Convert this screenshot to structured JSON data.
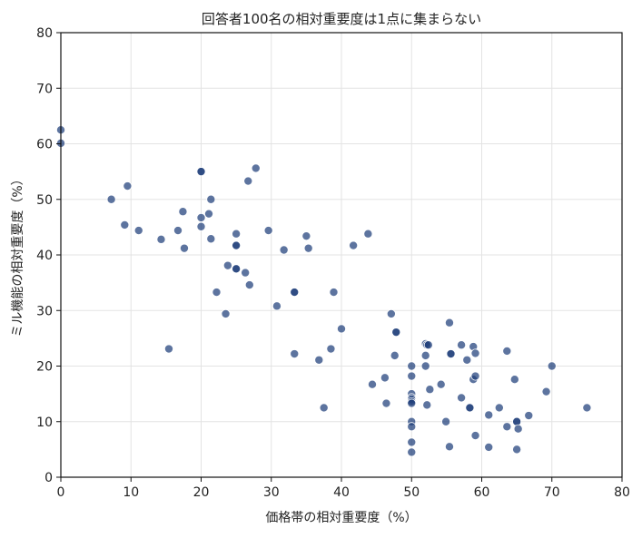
{
  "chart_data": {
    "type": "scatter",
    "title": "回答者100名の相対重要度は1点に集まらない",
    "xlabel": "価格帯の相対重要度（%）",
    "ylabel": "ミル機能の相対重要度（%）",
    "xlim": [
      0,
      80
    ],
    "ylim": [
      0,
      80
    ],
    "xticks": [
      0,
      10,
      20,
      30,
      40,
      50,
      60,
      70,
      80
    ],
    "yticks": [
      0,
      10,
      20,
      30,
      40,
      50,
      60,
      70,
      80
    ],
    "grid": true,
    "point_color": "#1f3f7a",
    "points": [
      [
        0,
        62.5
      ],
      [
        0,
        60.1
      ],
      [
        7.2,
        50.0
      ],
      [
        9.5,
        52.4
      ],
      [
        9.1,
        45.4
      ],
      [
        11.1,
        44.4
      ],
      [
        14.3,
        42.8
      ],
      [
        16.7,
        44.4
      ],
      [
        17.4,
        47.8
      ],
      [
        17.6,
        41.2
      ],
      [
        15.4,
        23.1
      ],
      [
        20.0,
        55.0
      ],
      [
        20.0,
        55.0
      ],
      [
        20.0,
        46.7
      ],
      [
        20.0,
        45.1
      ],
      [
        21.1,
        47.4
      ],
      [
        21.4,
        50.0
      ],
      [
        21.4,
        42.9
      ],
      [
        22.2,
        33.3
      ],
      [
        23.5,
        29.4
      ],
      [
        23.8,
        38.1
      ],
      [
        25.0,
        43.8
      ],
      [
        25.0,
        41.7
      ],
      [
        25.0,
        41.7
      ],
      [
        25.0,
        37.5
      ],
      [
        25.0,
        37.5
      ],
      [
        26.3,
        36.8
      ],
      [
        26.7,
        53.3
      ],
      [
        26.9,
        34.6
      ],
      [
        27.8,
        55.6
      ],
      [
        29.6,
        44.4
      ],
      [
        30.8,
        30.8
      ],
      [
        31.8,
        40.9
      ],
      [
        33.3,
        33.3
      ],
      [
        33.3,
        33.3
      ],
      [
        33.3,
        22.2
      ],
      [
        35.0,
        43.4
      ],
      [
        35.3,
        41.2
      ],
      [
        36.8,
        21.1
      ],
      [
        37.5,
        12.5
      ],
      [
        38.5,
        23.1
      ],
      [
        38.9,
        33.3
      ],
      [
        40.0,
        26.7
      ],
      [
        41.7,
        41.7
      ],
      [
        43.8,
        43.8
      ],
      [
        44.4,
        16.7
      ],
      [
        46.2,
        17.9
      ],
      [
        46.4,
        13.3
      ],
      [
        47.1,
        29.4
      ],
      [
        47.6,
        21.9
      ],
      [
        47.8,
        26.1
      ],
      [
        47.8,
        26.1
      ],
      [
        50.0,
        20.0
      ],
      [
        50.0,
        18.2
      ],
      [
        50.0,
        15.0
      ],
      [
        50.0,
        14.3
      ],
      [
        50.0,
        14.0
      ],
      [
        50.0,
        13.6
      ],
      [
        50.0,
        13.3
      ],
      [
        50.0,
        10.0
      ],
      [
        50.0,
        9.1
      ],
      [
        50.0,
        6.3
      ],
      [
        50.0,
        4.5
      ],
      [
        52.0,
        24.0
      ],
      [
        52.2,
        23.8
      ],
      [
        52.4,
        23.8
      ],
      [
        52.0,
        21.9
      ],
      [
        52.0,
        20.0
      ],
      [
        52.2,
        13.0
      ],
      [
        52.6,
        15.8
      ],
      [
        54.2,
        16.7
      ],
      [
        54.9,
        10.0
      ],
      [
        55.4,
        27.8
      ],
      [
        55.6,
        22.2
      ],
      [
        55.6,
        22.2
      ],
      [
        55.4,
        5.5
      ],
      [
        57.1,
        23.8
      ],
      [
        57.1,
        14.3
      ],
      [
        57.9,
        21.1
      ],
      [
        58.3,
        12.5
      ],
      [
        58.3,
        12.5
      ],
      [
        58.8,
        23.5
      ],
      [
        58.8,
        17.6
      ],
      [
        59.1,
        18.2
      ],
      [
        59.1,
        22.3
      ],
      [
        59.1,
        7.5
      ],
      [
        61.0,
        11.2
      ],
      [
        61.0,
        5.4
      ],
      [
        62.5,
        12.5
      ],
      [
        63.6,
        22.7
      ],
      [
        63.6,
        9.1
      ],
      [
        64.7,
        17.6
      ],
      [
        65.0,
        10.0
      ],
      [
        65.0,
        10.0
      ],
      [
        65.2,
        8.7
      ],
      [
        65.0,
        5.0
      ],
      [
        66.7,
        11.1
      ],
      [
        69.2,
        15.4
      ],
      [
        70.0,
        20.0
      ],
      [
        75.0,
        12.5
      ]
    ]
  }
}
